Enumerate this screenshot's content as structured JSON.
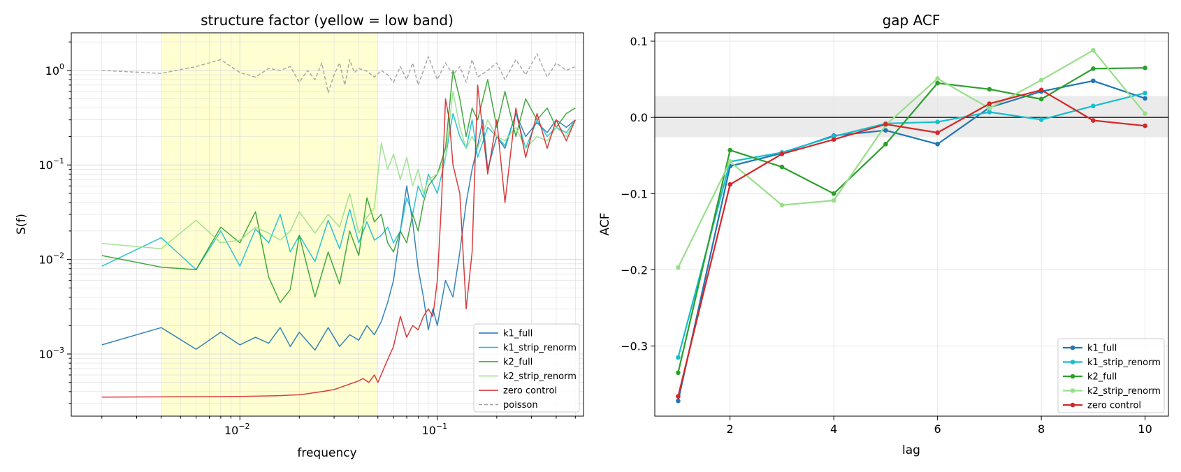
{
  "chart_data": [
    {
      "type": "line",
      "title": "structure factor (yellow = low band)",
      "xlabel": "frequency",
      "ylabel": "S(f)",
      "xscale": "log",
      "yscale": "log",
      "xlim": [
        0.0014,
        0.55
      ],
      "ylim": [
        0.00022,
        2.5
      ],
      "grid": true,
      "legend_position": "lower right",
      "shaded_band": {
        "x_range": [
          0.004,
          0.05
        ],
        "color": "#ffffcc",
        "label": "low band"
      },
      "x_ticks": [
        {
          "value": 0.01,
          "base": "10",
          "exp": "−2"
        },
        {
          "value": 0.1,
          "base": "10",
          "exp": "−1"
        }
      ],
      "y_ticks": [
        {
          "value": 0.001,
          "base": "10",
          "exp": "−3"
        },
        {
          "value": 0.01,
          "base": "10",
          "exp": "−2"
        },
        {
          "value": 0.1,
          "base": "10",
          "exp": "−1"
        },
        {
          "value": 1,
          "base": "10",
          "exp": "0"
        }
      ],
      "series": [
        {
          "name": "k1_full",
          "color": "#1f77b4",
          "style": "solid",
          "x": [
            0.002,
            0.004,
            0.006,
            0.008,
            0.01,
            0.012,
            0.014,
            0.016,
            0.018,
            0.02,
            0.024,
            0.028,
            0.032,
            0.036,
            0.04,
            0.044,
            0.048,
            0.052,
            0.056,
            0.06,
            0.065,
            0.07,
            0.075,
            0.08,
            0.085,
            0.09,
            0.095,
            0.1,
            0.11,
            0.12,
            0.13,
            0.14,
            0.15,
            0.16,
            0.17,
            0.18,
            0.2,
            0.22,
            0.25,
            0.28,
            0.32,
            0.36,
            0.4,
            0.45,
            0.5
          ],
          "y": [
            0.00125,
            0.0019,
            0.00112,
            0.0017,
            0.00125,
            0.0015,
            0.0013,
            0.0019,
            0.0012,
            0.0017,
            0.0011,
            0.0019,
            0.0012,
            0.0016,
            0.0014,
            0.002,
            0.0016,
            0.0022,
            0.0035,
            0.006,
            0.02,
            0.06,
            0.025,
            0.008,
            0.004,
            0.0018,
            0.003,
            0.002,
            0.006,
            0.004,
            0.012,
            0.04,
            0.09,
            0.16,
            0.3,
            0.09,
            0.2,
            0.15,
            0.35,
            0.2,
            0.28,
            0.22,
            0.3,
            0.25,
            0.3
          ]
        },
        {
          "name": "k1_strip_renorm",
          "color": "#17becf",
          "style": "solid",
          "x": [
            0.002,
            0.004,
            0.006,
            0.008,
            0.01,
            0.012,
            0.014,
            0.016,
            0.018,
            0.02,
            0.024,
            0.028,
            0.032,
            0.036,
            0.04,
            0.044,
            0.048,
            0.052,
            0.056,
            0.06,
            0.065,
            0.07,
            0.075,
            0.08,
            0.085,
            0.09,
            0.1,
            0.11,
            0.12,
            0.13,
            0.14,
            0.15,
            0.16,
            0.18,
            0.2,
            0.22,
            0.25,
            0.28,
            0.32,
            0.36,
            0.4,
            0.45,
            0.5
          ],
          "y": [
            0.0085,
            0.017,
            0.0078,
            0.02,
            0.0085,
            0.021,
            0.015,
            0.03,
            0.012,
            0.018,
            0.0095,
            0.026,
            0.013,
            0.034,
            0.015,
            0.025,
            0.016,
            0.018,
            0.022,
            0.015,
            0.02,
            0.045,
            0.03,
            0.06,
            0.045,
            0.08,
            0.05,
            0.12,
            0.35,
            0.2,
            0.15,
            0.3,
            0.12,
            0.25,
            0.2,
            0.16,
            0.35,
            0.15,
            0.3,
            0.2,
            0.25,
            0.22,
            0.3
          ]
        },
        {
          "name": "k2_full",
          "color": "#2ca02c",
          "style": "solid",
          "x": [
            0.002,
            0.004,
            0.006,
            0.008,
            0.01,
            0.012,
            0.014,
            0.016,
            0.018,
            0.02,
            0.024,
            0.028,
            0.032,
            0.036,
            0.04,
            0.044,
            0.048,
            0.052,
            0.056,
            0.06,
            0.065,
            0.07,
            0.075,
            0.08,
            0.085,
            0.09,
            0.1,
            0.11,
            0.12,
            0.13,
            0.14,
            0.15,
            0.16,
            0.18,
            0.2,
            0.22,
            0.25,
            0.28,
            0.32,
            0.36,
            0.4,
            0.45,
            0.5
          ],
          "y": [
            0.011,
            0.0083,
            0.0078,
            0.022,
            0.015,
            0.032,
            0.0065,
            0.0035,
            0.0048,
            0.018,
            0.004,
            0.012,
            0.0055,
            0.02,
            0.011,
            0.045,
            0.025,
            0.03,
            0.015,
            0.012,
            0.02,
            0.015,
            0.03,
            0.02,
            0.04,
            0.06,
            0.08,
            0.15,
            1.0,
            0.5,
            0.2,
            0.4,
            0.3,
            0.8,
            0.25,
            0.6,
            0.2,
            0.5,
            0.3,
            0.4,
            0.25,
            0.35,
            0.4
          ]
        },
        {
          "name": "k2_strip_renorm",
          "color": "#98df8a",
          "style": "solid",
          "x": [
            0.002,
            0.004,
            0.006,
            0.008,
            0.01,
            0.012,
            0.014,
            0.016,
            0.018,
            0.02,
            0.024,
            0.028,
            0.032,
            0.036,
            0.04,
            0.044,
            0.048,
            0.052,
            0.056,
            0.06,
            0.065,
            0.07,
            0.075,
            0.08,
            0.085,
            0.09,
            0.1,
            0.11,
            0.12,
            0.13,
            0.14,
            0.15,
            0.16,
            0.18,
            0.2,
            0.22,
            0.25,
            0.28,
            0.32,
            0.36,
            0.4,
            0.45,
            0.5
          ],
          "y": [
            0.0148,
            0.013,
            0.026,
            0.015,
            0.016,
            0.022,
            0.019,
            0.016,
            0.02,
            0.032,
            0.019,
            0.03,
            0.022,
            0.05,
            0.019,
            0.028,
            0.035,
            0.17,
            0.09,
            0.13,
            0.07,
            0.12,
            0.06,
            0.09,
            0.05,
            0.07,
            0.08,
            0.12,
            0.6,
            0.25,
            0.15,
            0.2,
            0.15,
            0.3,
            0.2,
            0.18,
            0.25,
            0.15,
            0.2,
            0.18,
            0.25,
            0.2,
            0.3
          ]
        },
        {
          "name": "zero control",
          "color": "#d62728",
          "style": "solid",
          "x": [
            0.002,
            0.004,
            0.006,
            0.008,
            0.01,
            0.012,
            0.014,
            0.016,
            0.018,
            0.02,
            0.022,
            0.024,
            0.026,
            0.028,
            0.03,
            0.032,
            0.034,
            0.036,
            0.038,
            0.04,
            0.042,
            0.045,
            0.048,
            0.05,
            0.055,
            0.06,
            0.065,
            0.07,
            0.075,
            0.08,
            0.085,
            0.09,
            0.095,
            0.1,
            0.105,
            0.11,
            0.115,
            0.12,
            0.13,
            0.14,
            0.15,
            0.16,
            0.18,
            0.2,
            0.22,
            0.25,
            0.28,
            0.32,
            0.36,
            0.4,
            0.45,
            0.5
          ],
          "y": [
            0.00035,
            0.000352,
            0.000353,
            0.000354,
            0.000356,
            0.000358,
            0.00036,
            0.000363,
            0.000367,
            0.00037,
            0.00038,
            0.00039,
            0.0004,
            0.00041,
            0.00042,
            0.00044,
            0.00046,
            0.00048,
            0.0005,
            0.00052,
            0.00055,
            0.0005,
            0.0006,
            0.0005,
            0.0008,
            0.0012,
            0.0025,
            0.0015,
            0.002,
            0.0018,
            0.0025,
            0.003,
            0.0025,
            0.006,
            0.04,
            0.5,
            0.3,
            0.1,
            0.05,
            0.003,
            0.012,
            0.7,
            0.08,
            0.3,
            0.04,
            0.4,
            0.12,
            0.35,
            0.15,
            0.3,
            0.18,
            0.3
          ]
        },
        {
          "name": "poisson",
          "color": "#a0a0a0",
          "style": "dashed",
          "x": [
            0.002,
            0.004,
            0.006,
            0.008,
            0.01,
            0.012,
            0.014,
            0.016,
            0.018,
            0.02,
            0.022,
            0.024,
            0.026,
            0.028,
            0.03,
            0.032,
            0.034,
            0.036,
            0.038,
            0.04,
            0.044,
            0.048,
            0.052,
            0.056,
            0.06,
            0.065,
            0.07,
            0.075,
            0.08,
            0.085,
            0.09,
            0.1,
            0.11,
            0.12,
            0.13,
            0.14,
            0.15,
            0.16,
            0.18,
            0.2,
            0.22,
            0.25,
            0.28,
            0.32,
            0.36,
            0.4,
            0.45,
            0.5
          ],
          "y": [
            1.0,
            0.93,
            1.1,
            1.3,
            0.95,
            0.85,
            1.05,
            1.0,
            1.1,
            0.75,
            1.0,
            0.8,
            1.2,
            0.58,
            0.9,
            1.2,
            0.7,
            1.3,
            0.95,
            1.05,
            0.98,
            0.85,
            1.0,
            0.9,
            0.75,
            1.1,
            0.8,
            1.2,
            0.7,
            1.0,
            1.4,
            0.8,
            1.2,
            0.9,
            1.1,
            0.75,
            1.3,
            0.85,
            1.0,
            1.2,
            0.8,
            1.3,
            0.9,
            1.5,
            0.85,
            1.2,
            1.0,
            1.1
          ]
        }
      ]
    },
    {
      "type": "line",
      "title": "gap ACF",
      "xlabel": "lag",
      "ylabel": "ACF",
      "xlim": [
        0.55,
        10.45
      ],
      "ylim": [
        -0.392,
        0.111
      ],
      "grid": true,
      "legend_position": "lower right",
      "shaded_band": {
        "y_range": [
          -0.026,
          0.028
        ],
        "color": "#ebebeb"
      },
      "zero_line": 0,
      "x_ticks": [
        2,
        4,
        6,
        8,
        10
      ],
      "y_ticks": [
        {
          "value": 0.1,
          "label": "0.1"
        },
        {
          "value": 0.0,
          "label": "0.0"
        },
        {
          "value": -0.1,
          "label": "−0.1"
        },
        {
          "value": -0.2,
          "label": "−0.2"
        },
        {
          "value": -0.3,
          "label": "−0.3"
        }
      ],
      "x": [
        1,
        2,
        3,
        4,
        5,
        6,
        7,
        8,
        9,
        10
      ],
      "series": [
        {
          "name": "k1_full",
          "color": "#1f77b4",
          "values": [
            -0.372,
            -0.064,
            -0.047,
            -0.024,
            -0.017,
            -0.035,
            0.013,
            0.034,
            0.048,
            0.025
          ]
        },
        {
          "name": "k1_strip_renorm",
          "color": "#17becf",
          "values": [
            -0.315,
            -0.058,
            -0.046,
            -0.025,
            -0.008,
            -0.006,
            0.007,
            -0.003,
            0.015,
            0.032
          ]
        },
        {
          "name": "k2_full",
          "color": "#2ca02c",
          "values": [
            -0.335,
            -0.043,
            -0.065,
            -0.1,
            -0.035,
            0.045,
            0.037,
            0.024,
            0.064,
            0.065
          ]
        },
        {
          "name": "k2_strip_renorm",
          "color": "#98df8a",
          "values": [
            -0.197,
            -0.058,
            -0.115,
            -0.109,
            -0.01,
            0.051,
            0.012,
            0.049,
            0.088,
            0.005
          ]
        },
        {
          "name": "zero control",
          "color": "#d62728",
          "values": [
            -0.366,
            -0.088,
            -0.048,
            -0.029,
            -0.009,
            -0.02,
            0.018,
            0.036,
            -0.004,
            -0.011
          ]
        }
      ]
    }
  ]
}
